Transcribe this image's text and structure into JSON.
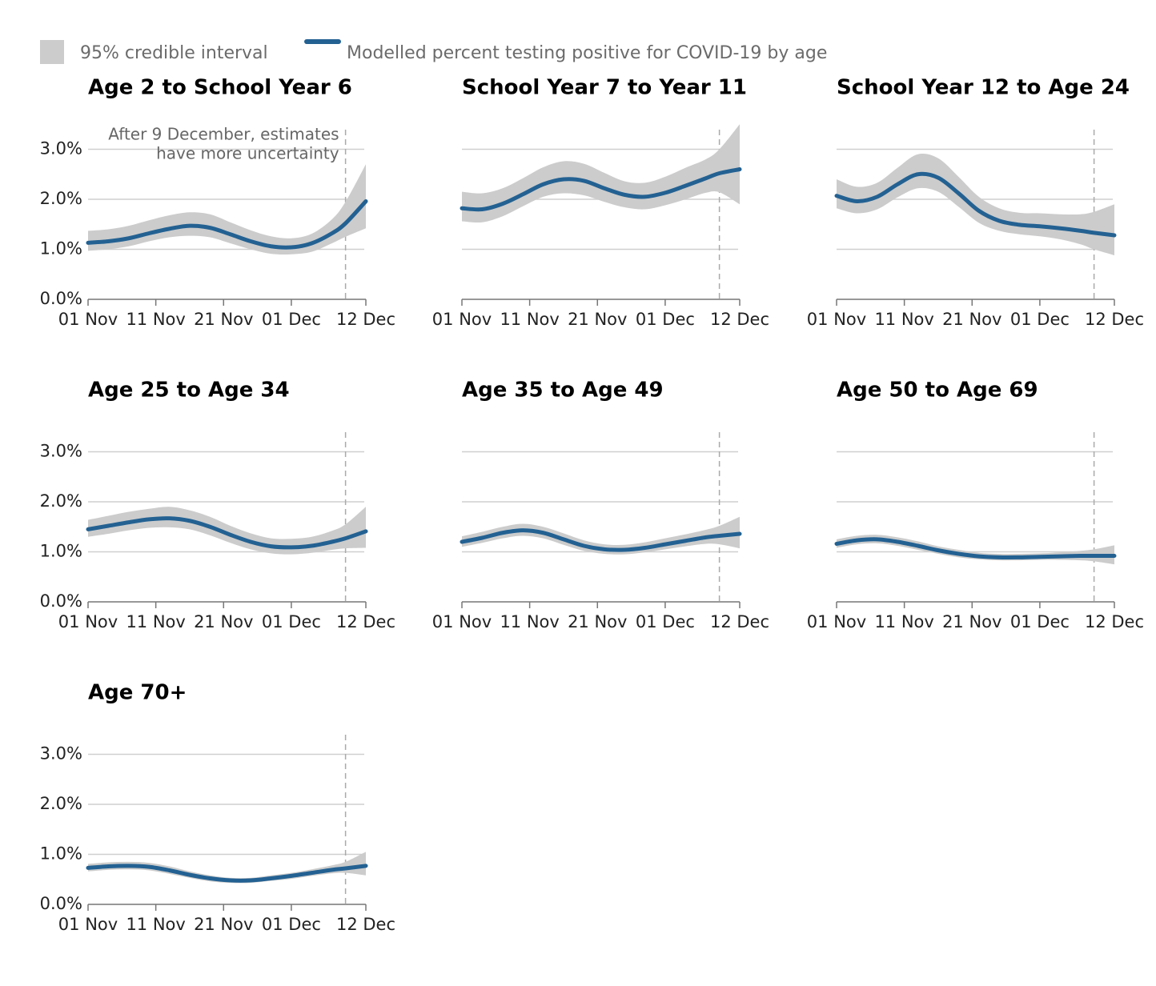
{
  "colors": {
    "line": "#236192",
    "band": "#cccccc",
    "grid": "#cfcfcf",
    "axis": "#777777",
    "cutoff": "#aaaaaa"
  },
  "legend": {
    "band_label": "95% credible interval",
    "line_label": "Modelled percent testing positive for COVID-19 by age"
  },
  "chart_data": {
    "type": "line",
    "facet": "small-multiples",
    "x_ticks": [
      "01 Nov",
      "11 Nov",
      "21 Nov",
      "01 Dec",
      "12 Dec"
    ],
    "x_tick_days": [
      0,
      10,
      20,
      30,
      41
    ],
    "x_range_days": [
      0,
      41
    ],
    "y_ticks": [
      "0.0%",
      "1.0%",
      "2.0%",
      "3.0%"
    ],
    "y_tick_values": [
      0,
      1,
      2,
      3
    ],
    "ylim": [
      0,
      3.6
    ],
    "grid": true,
    "cutoff": {
      "day": 38,
      "label_line1": "After 9 December, estimates",
      "label_line2": "have more uncertainty"
    },
    "panels": [
      {
        "title": "Age 2 to School Year 6",
        "x_days": [
          0,
          3,
          6,
          9,
          12,
          15,
          18,
          21,
          24,
          27,
          30,
          33,
          36,
          38,
          41
        ],
        "values": [
          1.13,
          1.16,
          1.22,
          1.32,
          1.41,
          1.47,
          1.43,
          1.3,
          1.16,
          1.06,
          1.04,
          1.12,
          1.32,
          1.52,
          1.96
        ],
        "lower": [
          0.97,
          1.0,
          1.06,
          1.16,
          1.24,
          1.27,
          1.24,
          1.12,
          1.0,
          0.91,
          0.9,
          0.95,
          1.12,
          1.25,
          1.42
        ],
        "upper": [
          1.37,
          1.4,
          1.47,
          1.58,
          1.68,
          1.74,
          1.7,
          1.54,
          1.38,
          1.26,
          1.22,
          1.31,
          1.6,
          1.95,
          2.7
        ]
      },
      {
        "title": "School Year 7 to Year 11",
        "x_days": [
          0,
          3,
          6,
          9,
          12,
          15,
          18,
          21,
          24,
          27,
          30,
          33,
          36,
          38,
          41
        ],
        "values": [
          1.82,
          1.8,
          1.91,
          2.1,
          2.3,
          2.4,
          2.37,
          2.22,
          2.09,
          2.05,
          2.13,
          2.27,
          2.42,
          2.52,
          2.6
        ],
        "lower": [
          1.56,
          1.54,
          1.66,
          1.86,
          2.05,
          2.12,
          2.08,
          1.95,
          1.84,
          1.8,
          1.88,
          2.0,
          2.13,
          2.14,
          1.9
        ],
        "upper": [
          2.15,
          2.12,
          2.22,
          2.42,
          2.64,
          2.76,
          2.71,
          2.53,
          2.36,
          2.33,
          2.45,
          2.63,
          2.8,
          3.0,
          3.5
        ]
      },
      {
        "title": "School Year 12 to Age 24",
        "x_days": [
          0,
          3,
          6,
          9,
          12,
          15,
          18,
          21,
          24,
          27,
          30,
          33,
          36,
          38,
          41
        ],
        "values": [
          2.07,
          1.96,
          2.05,
          2.3,
          2.5,
          2.43,
          2.12,
          1.77,
          1.57,
          1.49,
          1.46,
          1.42,
          1.37,
          1.33,
          1.28
        ],
        "lower": [
          1.82,
          1.72,
          1.8,
          2.04,
          2.22,
          2.15,
          1.85,
          1.53,
          1.37,
          1.3,
          1.26,
          1.2,
          1.1,
          1.0,
          0.88
        ],
        "upper": [
          2.4,
          2.25,
          2.33,
          2.63,
          2.9,
          2.82,
          2.45,
          2.05,
          1.82,
          1.73,
          1.72,
          1.7,
          1.7,
          1.75,
          1.9
        ]
      },
      {
        "title": "Age 25 to Age 34",
        "x_days": [
          0,
          3,
          6,
          9,
          12,
          15,
          18,
          21,
          24,
          27,
          30,
          33,
          36,
          38,
          41
        ],
        "values": [
          1.45,
          1.52,
          1.59,
          1.65,
          1.67,
          1.62,
          1.5,
          1.34,
          1.2,
          1.11,
          1.09,
          1.12,
          1.2,
          1.27,
          1.41
        ],
        "lower": [
          1.3,
          1.36,
          1.43,
          1.48,
          1.49,
          1.45,
          1.33,
          1.18,
          1.05,
          0.97,
          0.95,
          0.98,
          1.04,
          1.07,
          1.08
        ],
        "upper": [
          1.64,
          1.72,
          1.8,
          1.86,
          1.9,
          1.83,
          1.7,
          1.52,
          1.37,
          1.27,
          1.26,
          1.3,
          1.42,
          1.55,
          1.9
        ]
      },
      {
        "title": "Age 35 to Age 49",
        "x_days": [
          0,
          3,
          6,
          9,
          12,
          15,
          18,
          21,
          24,
          27,
          30,
          33,
          36,
          38,
          41
        ],
        "values": [
          1.2,
          1.28,
          1.38,
          1.43,
          1.38,
          1.25,
          1.12,
          1.05,
          1.04,
          1.08,
          1.15,
          1.22,
          1.29,
          1.32,
          1.36
        ],
        "lower": [
          1.1,
          1.18,
          1.27,
          1.32,
          1.27,
          1.14,
          1.02,
          0.96,
          0.95,
          0.99,
          1.05,
          1.11,
          1.16,
          1.15,
          1.07
        ],
        "upper": [
          1.31,
          1.4,
          1.5,
          1.56,
          1.5,
          1.37,
          1.23,
          1.15,
          1.14,
          1.19,
          1.27,
          1.35,
          1.44,
          1.52,
          1.7
        ]
      },
      {
        "title": "Age 50 to Age 69",
        "x_days": [
          0,
          3,
          6,
          9,
          12,
          15,
          18,
          21,
          24,
          27,
          30,
          33,
          36,
          38,
          41
        ],
        "values": [
          1.16,
          1.23,
          1.25,
          1.2,
          1.12,
          1.03,
          0.96,
          0.91,
          0.89,
          0.89,
          0.9,
          0.91,
          0.92,
          0.92,
          0.92
        ],
        "lower": [
          1.08,
          1.15,
          1.17,
          1.12,
          1.04,
          0.96,
          0.89,
          0.85,
          0.83,
          0.83,
          0.84,
          0.84,
          0.83,
          0.81,
          0.75
        ],
        "upper": [
          1.25,
          1.32,
          1.34,
          1.29,
          1.21,
          1.11,
          1.04,
          0.98,
          0.96,
          0.96,
          0.97,
          0.99,
          1.02,
          1.05,
          1.13
        ]
      },
      {
        "title": "Age 70+",
        "x_days": [
          0,
          3,
          6,
          9,
          12,
          15,
          18,
          21,
          24,
          27,
          30,
          33,
          36,
          38,
          41
        ],
        "values": [
          0.73,
          0.76,
          0.77,
          0.75,
          0.68,
          0.59,
          0.52,
          0.48,
          0.48,
          0.52,
          0.57,
          0.63,
          0.69,
          0.72,
          0.77
        ],
        "lower": [
          0.66,
          0.69,
          0.7,
          0.68,
          0.61,
          0.53,
          0.46,
          0.43,
          0.43,
          0.47,
          0.51,
          0.57,
          0.62,
          0.63,
          0.58
        ],
        "upper": [
          0.81,
          0.84,
          0.85,
          0.83,
          0.76,
          0.66,
          0.58,
          0.53,
          0.53,
          0.58,
          0.63,
          0.7,
          0.78,
          0.85,
          1.05
        ]
      }
    ]
  }
}
